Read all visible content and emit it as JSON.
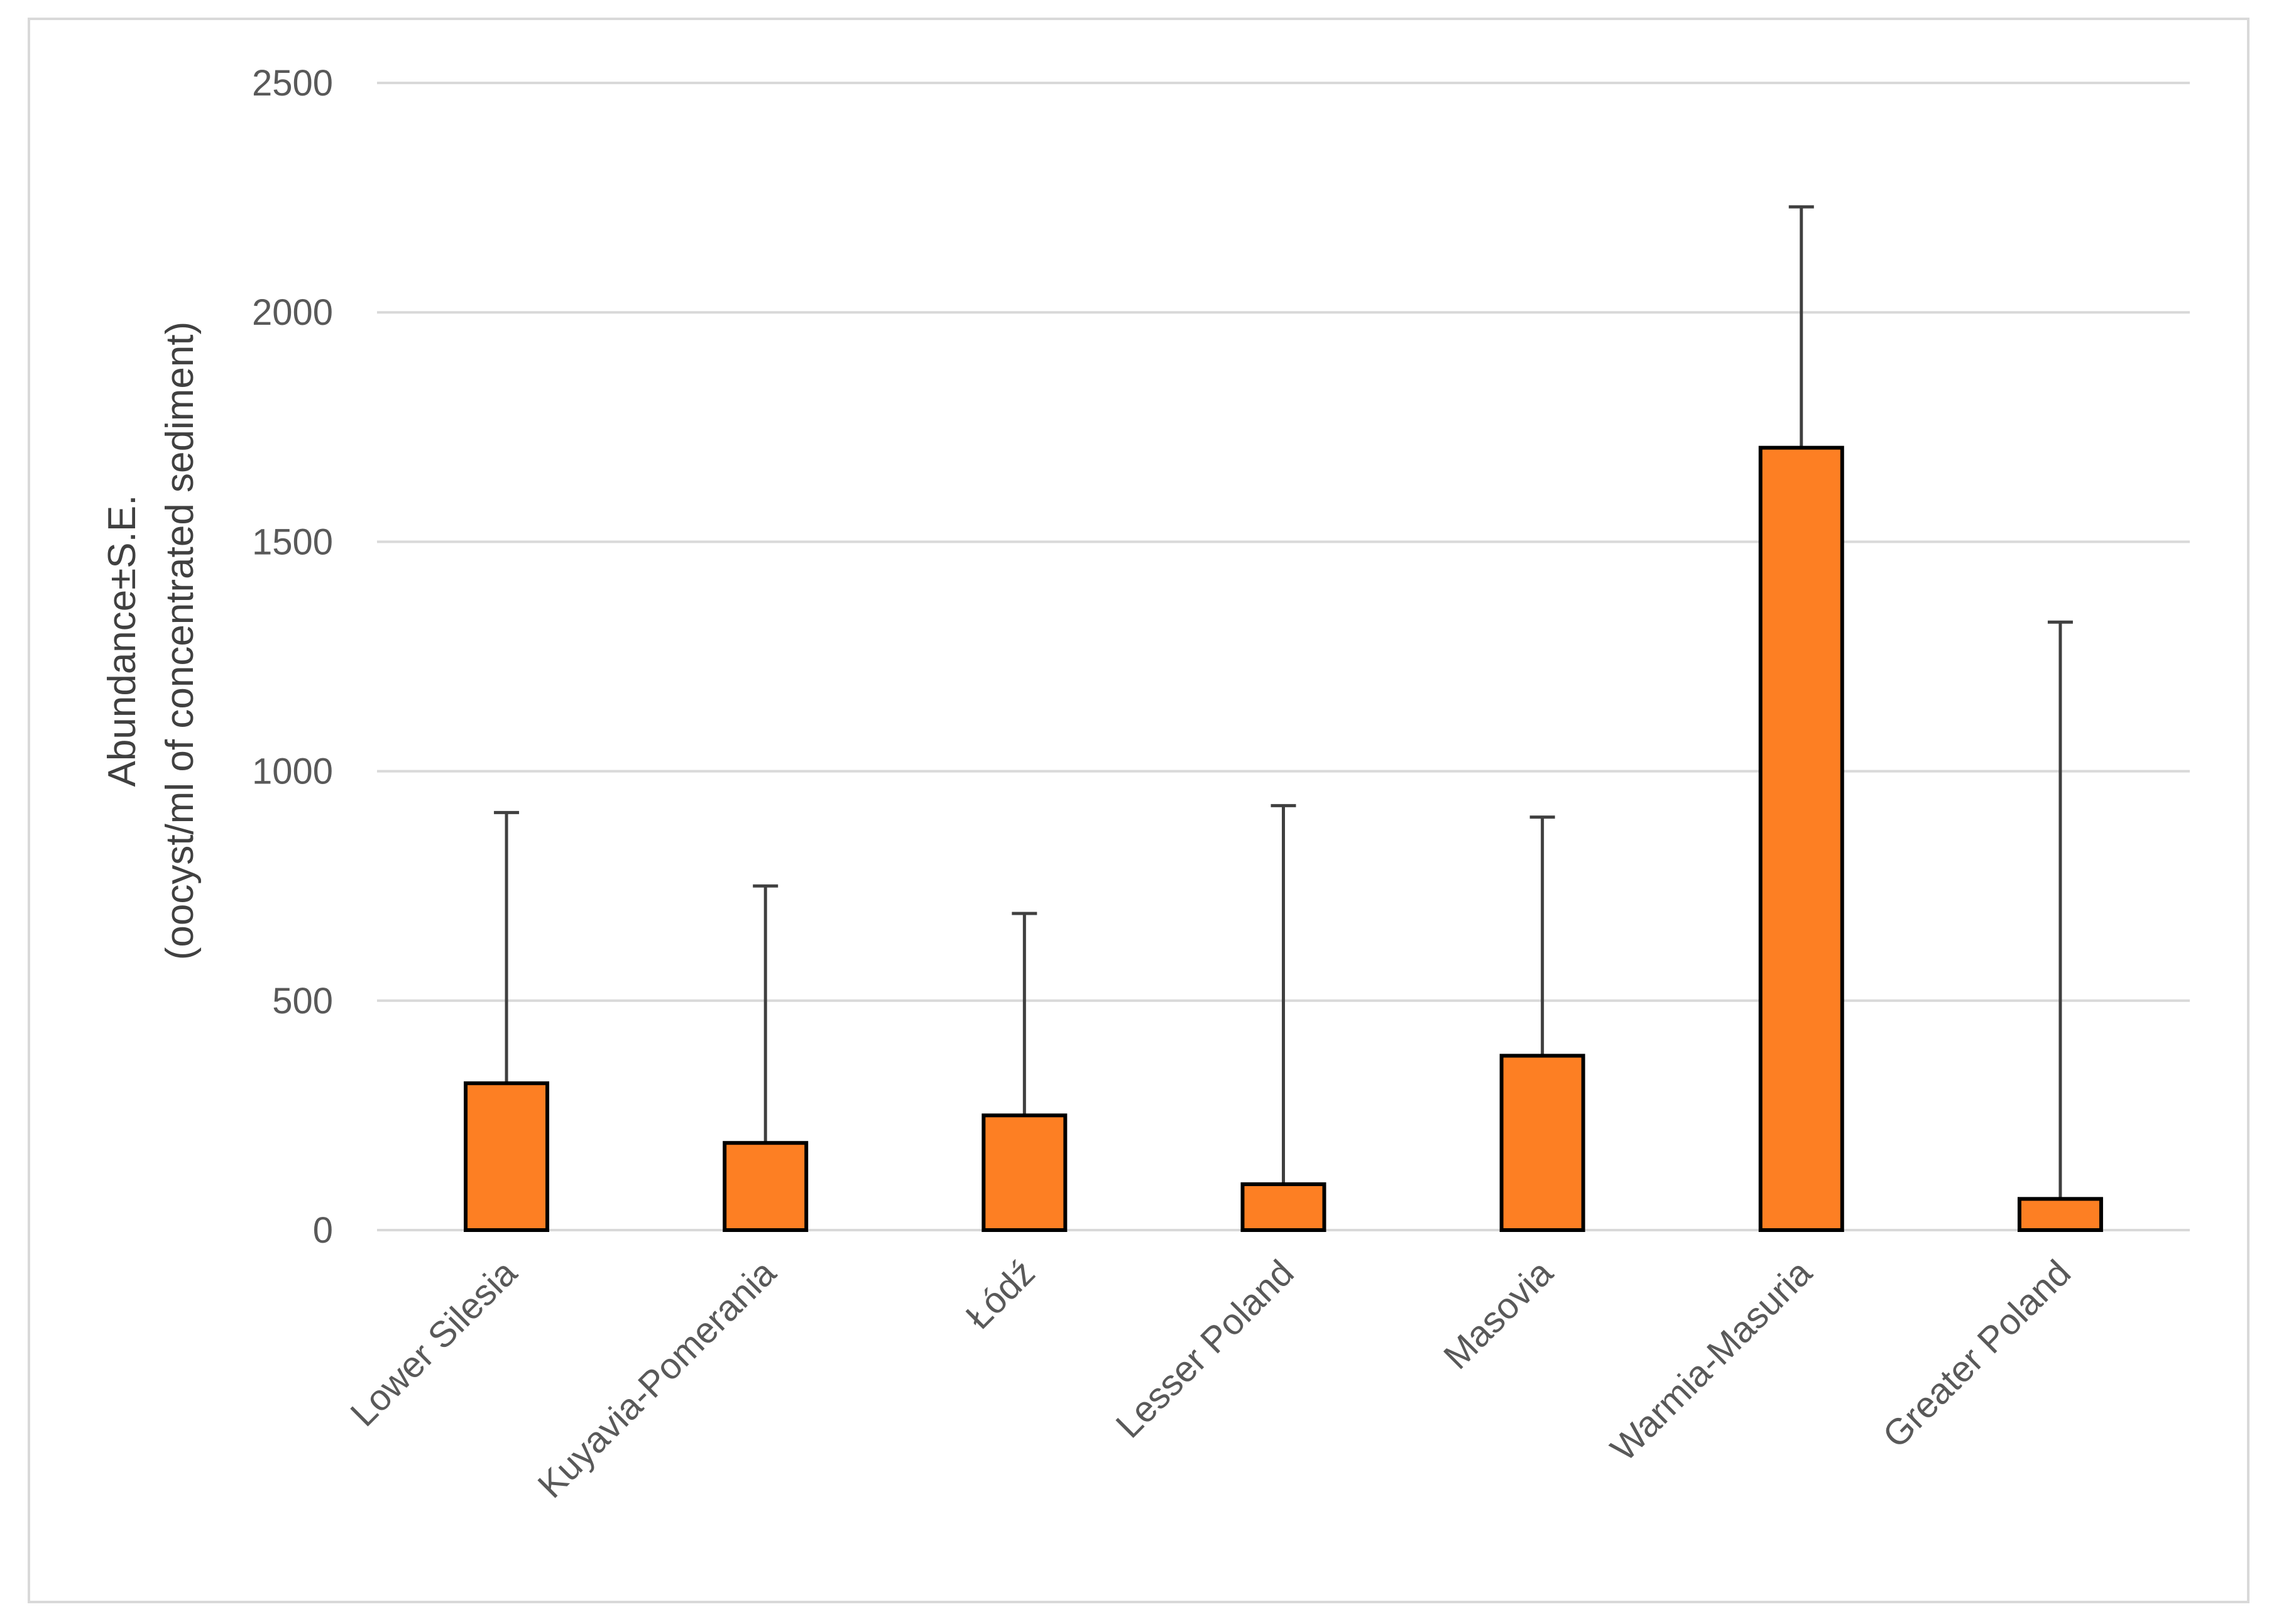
{
  "chart_data": {
    "type": "bar",
    "categories": [
      "Lower Silesia",
      "Kuyavia-Pomerania",
      "Łódź",
      "Lesser Poland",
      "Masovia",
      "Warmia-Masuria",
      "Greater Poland"
    ],
    "values": [
      320,
      190,
      250,
      100,
      380,
      1705,
      68
    ],
    "error_upper": [
      910,
      750,
      690,
      925,
      900,
      2230,
      1325
    ],
    "ylabel_line1": "Abundance±S.E.",
    "ylabel_line2": "(oocyst/ml of concentrated sediment)",
    "ylim": [
      0,
      2500
    ],
    "yticks": [
      0,
      500,
      1000,
      1500,
      2000,
      2500
    ],
    "grid": true,
    "colors": {
      "bar": "#fd7f23",
      "bar_edge": "#000000",
      "error": "#404040",
      "grid": "#d9d9d9"
    }
  }
}
